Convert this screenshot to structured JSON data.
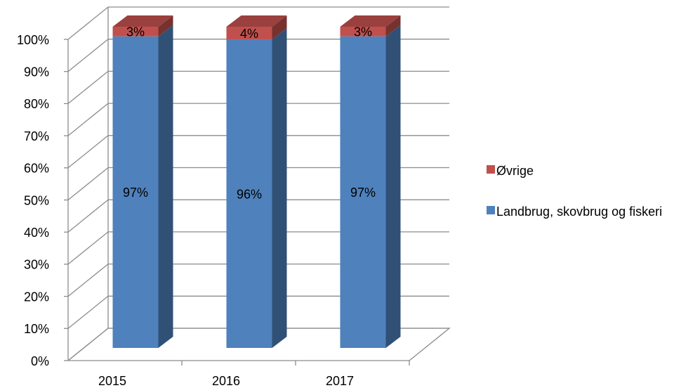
{
  "chart_data": {
    "type": "bar3d_stacked",
    "categories": [
      "2015",
      "2016",
      "2017"
    ],
    "series": [
      {
        "name": "Landbrug, skovbrug og fiskeri",
        "color": "#4f81bd",
        "values": [
          97,
          96,
          97
        ],
        "value_labels": [
          "97%",
          "96%",
          "97%"
        ]
      },
      {
        "name": "Øvrige",
        "color": "#c0504d",
        "values": [
          3,
          4,
          3
        ],
        "value_labels": [
          "3%",
          "4%",
          "3%"
        ]
      }
    ],
    "ylim": [
      0,
      100
    ],
    "yticks": [
      {
        "value": 0,
        "label": "0%"
      },
      {
        "value": 10,
        "label": "10%"
      },
      {
        "value": 20,
        "label": "20%"
      },
      {
        "value": 30,
        "label": "30%"
      },
      {
        "value": 40,
        "label": "40%"
      },
      {
        "value": 50,
        "label": "50%"
      },
      {
        "value": 60,
        "label": "60%"
      },
      {
        "value": 70,
        "label": "70%"
      },
      {
        "value": 80,
        "label": "80%"
      },
      {
        "value": 90,
        "label": "90%"
      },
      {
        "value": 100,
        "label": "100%"
      }
    ],
    "grid": true
  }
}
